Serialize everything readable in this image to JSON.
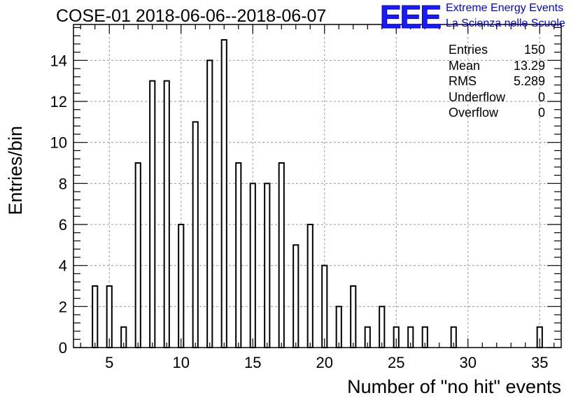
{
  "header": {
    "title": "COSE-01 2018-06-06--2018-06-07",
    "logo_text": "EEE",
    "logo_line1": "Extreme Energy Events",
    "logo_line2": "La Scienza nelle Scuole"
  },
  "stats": [
    {
      "label": "Entries",
      "value": "150"
    },
    {
      "label": "Mean",
      "value": "13.29"
    },
    {
      "label": "RMS",
      "value": "5.289"
    },
    {
      "label": "Underflow",
      "value": "0"
    },
    {
      "label": "Overflow",
      "value": "0"
    }
  ],
  "colors": {
    "bar_stroke": "#000000",
    "grid": "#9a9a9a",
    "logo": "#1a1aff"
  },
  "chart_data": {
    "type": "bar",
    "title": "COSE-01 2018-06-06--2018-06-07",
    "xlabel": "Number of \"no hit\" events",
    "ylabel": "Entries/bin",
    "xlim": [
      2.5,
      36.5
    ],
    "ylim": [
      0,
      15.75
    ],
    "xticks": [
      5,
      10,
      15,
      20,
      25,
      30,
      35
    ],
    "yticks": [
      0,
      2,
      4,
      6,
      8,
      10,
      12,
      14
    ],
    "grid": true,
    "bar_width": 0.35,
    "x": [
      4,
      5,
      6,
      7,
      8,
      9,
      10,
      11,
      12,
      13,
      14,
      15,
      16,
      17,
      18,
      19,
      20,
      21,
      22,
      23,
      24,
      25,
      26,
      27,
      29,
      35
    ],
    "values": [
      3,
      3,
      1,
      9,
      13,
      13,
      6,
      11,
      14,
      15,
      9,
      8,
      8,
      9,
      5,
      6,
      4,
      2,
      3,
      1,
      2,
      1,
      1,
      1,
      1,
      1
    ]
  }
}
